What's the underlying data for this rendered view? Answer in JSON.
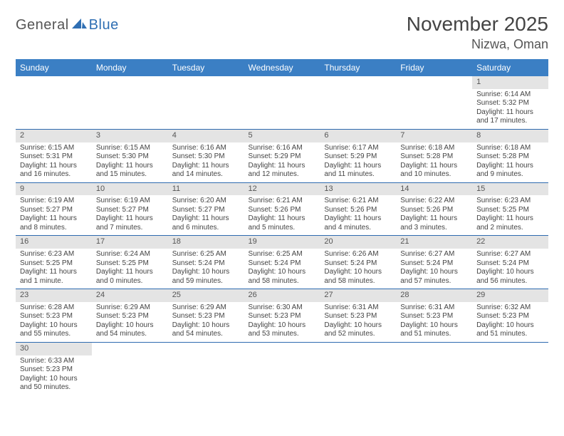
{
  "logo": {
    "text1": "General",
    "text2": "Blue"
  },
  "title": "November 2025",
  "location": "Nizwa, Oman",
  "colors": {
    "header_bg": "#3b7fc4",
    "header_text": "#ffffff",
    "daynum_bg": "#e4e4e4",
    "row_divider": "#2e6bb0",
    "logo_gray": "#555555",
    "logo_blue": "#2f6fb3"
  },
  "weekdays": [
    "Sunday",
    "Monday",
    "Tuesday",
    "Wednesday",
    "Thursday",
    "Friday",
    "Saturday"
  ],
  "weeks": [
    {
      "nums": [
        "",
        "",
        "",
        "",
        "",
        "",
        "1"
      ],
      "cells": [
        null,
        null,
        null,
        null,
        null,
        null,
        {
          "sunrise": "6:14 AM",
          "sunset": "5:32 PM",
          "daylight": "11 hours and 17 minutes."
        }
      ]
    },
    {
      "nums": [
        "2",
        "3",
        "4",
        "5",
        "6",
        "7",
        "8"
      ],
      "cells": [
        {
          "sunrise": "6:15 AM",
          "sunset": "5:31 PM",
          "daylight": "11 hours and 16 minutes."
        },
        {
          "sunrise": "6:15 AM",
          "sunset": "5:30 PM",
          "daylight": "11 hours and 15 minutes."
        },
        {
          "sunrise": "6:16 AM",
          "sunset": "5:30 PM",
          "daylight": "11 hours and 14 minutes."
        },
        {
          "sunrise": "6:16 AM",
          "sunset": "5:29 PM",
          "daylight": "11 hours and 12 minutes."
        },
        {
          "sunrise": "6:17 AM",
          "sunset": "5:29 PM",
          "daylight": "11 hours and 11 minutes."
        },
        {
          "sunrise": "6:18 AM",
          "sunset": "5:28 PM",
          "daylight": "11 hours and 10 minutes."
        },
        {
          "sunrise": "6:18 AM",
          "sunset": "5:28 PM",
          "daylight": "11 hours and 9 minutes."
        }
      ]
    },
    {
      "nums": [
        "9",
        "10",
        "11",
        "12",
        "13",
        "14",
        "15"
      ],
      "cells": [
        {
          "sunrise": "6:19 AM",
          "sunset": "5:27 PM",
          "daylight": "11 hours and 8 minutes."
        },
        {
          "sunrise": "6:19 AM",
          "sunset": "5:27 PM",
          "daylight": "11 hours and 7 minutes."
        },
        {
          "sunrise": "6:20 AM",
          "sunset": "5:27 PM",
          "daylight": "11 hours and 6 minutes."
        },
        {
          "sunrise": "6:21 AM",
          "sunset": "5:26 PM",
          "daylight": "11 hours and 5 minutes."
        },
        {
          "sunrise": "6:21 AM",
          "sunset": "5:26 PM",
          "daylight": "11 hours and 4 minutes."
        },
        {
          "sunrise": "6:22 AM",
          "sunset": "5:26 PM",
          "daylight": "11 hours and 3 minutes."
        },
        {
          "sunrise": "6:23 AM",
          "sunset": "5:25 PM",
          "daylight": "11 hours and 2 minutes."
        }
      ]
    },
    {
      "nums": [
        "16",
        "17",
        "18",
        "19",
        "20",
        "21",
        "22"
      ],
      "cells": [
        {
          "sunrise": "6:23 AM",
          "sunset": "5:25 PM",
          "daylight": "11 hours and 1 minute."
        },
        {
          "sunrise": "6:24 AM",
          "sunset": "5:25 PM",
          "daylight": "11 hours and 0 minutes."
        },
        {
          "sunrise": "6:25 AM",
          "sunset": "5:24 PM",
          "daylight": "10 hours and 59 minutes."
        },
        {
          "sunrise": "6:25 AM",
          "sunset": "5:24 PM",
          "daylight": "10 hours and 58 minutes."
        },
        {
          "sunrise": "6:26 AM",
          "sunset": "5:24 PM",
          "daylight": "10 hours and 58 minutes."
        },
        {
          "sunrise": "6:27 AM",
          "sunset": "5:24 PM",
          "daylight": "10 hours and 57 minutes."
        },
        {
          "sunrise": "6:27 AM",
          "sunset": "5:24 PM",
          "daylight": "10 hours and 56 minutes."
        }
      ]
    },
    {
      "nums": [
        "23",
        "24",
        "25",
        "26",
        "27",
        "28",
        "29"
      ],
      "cells": [
        {
          "sunrise": "6:28 AM",
          "sunset": "5:23 PM",
          "daylight": "10 hours and 55 minutes."
        },
        {
          "sunrise": "6:29 AM",
          "sunset": "5:23 PM",
          "daylight": "10 hours and 54 minutes."
        },
        {
          "sunrise": "6:29 AM",
          "sunset": "5:23 PM",
          "daylight": "10 hours and 54 minutes."
        },
        {
          "sunrise": "6:30 AM",
          "sunset": "5:23 PM",
          "daylight": "10 hours and 53 minutes."
        },
        {
          "sunrise": "6:31 AM",
          "sunset": "5:23 PM",
          "daylight": "10 hours and 52 minutes."
        },
        {
          "sunrise": "6:31 AM",
          "sunset": "5:23 PM",
          "daylight": "10 hours and 51 minutes."
        },
        {
          "sunrise": "6:32 AM",
          "sunset": "5:23 PM",
          "daylight": "10 hours and 51 minutes."
        }
      ]
    },
    {
      "nums": [
        "30",
        "",
        "",
        "",
        "",
        "",
        ""
      ],
      "cells": [
        {
          "sunrise": "6:33 AM",
          "sunset": "5:23 PM",
          "daylight": "10 hours and 50 minutes."
        },
        null,
        null,
        null,
        null,
        null,
        null
      ]
    }
  ],
  "labels": {
    "sunrise": "Sunrise:",
    "sunset": "Sunset:",
    "daylight": "Daylight:"
  }
}
